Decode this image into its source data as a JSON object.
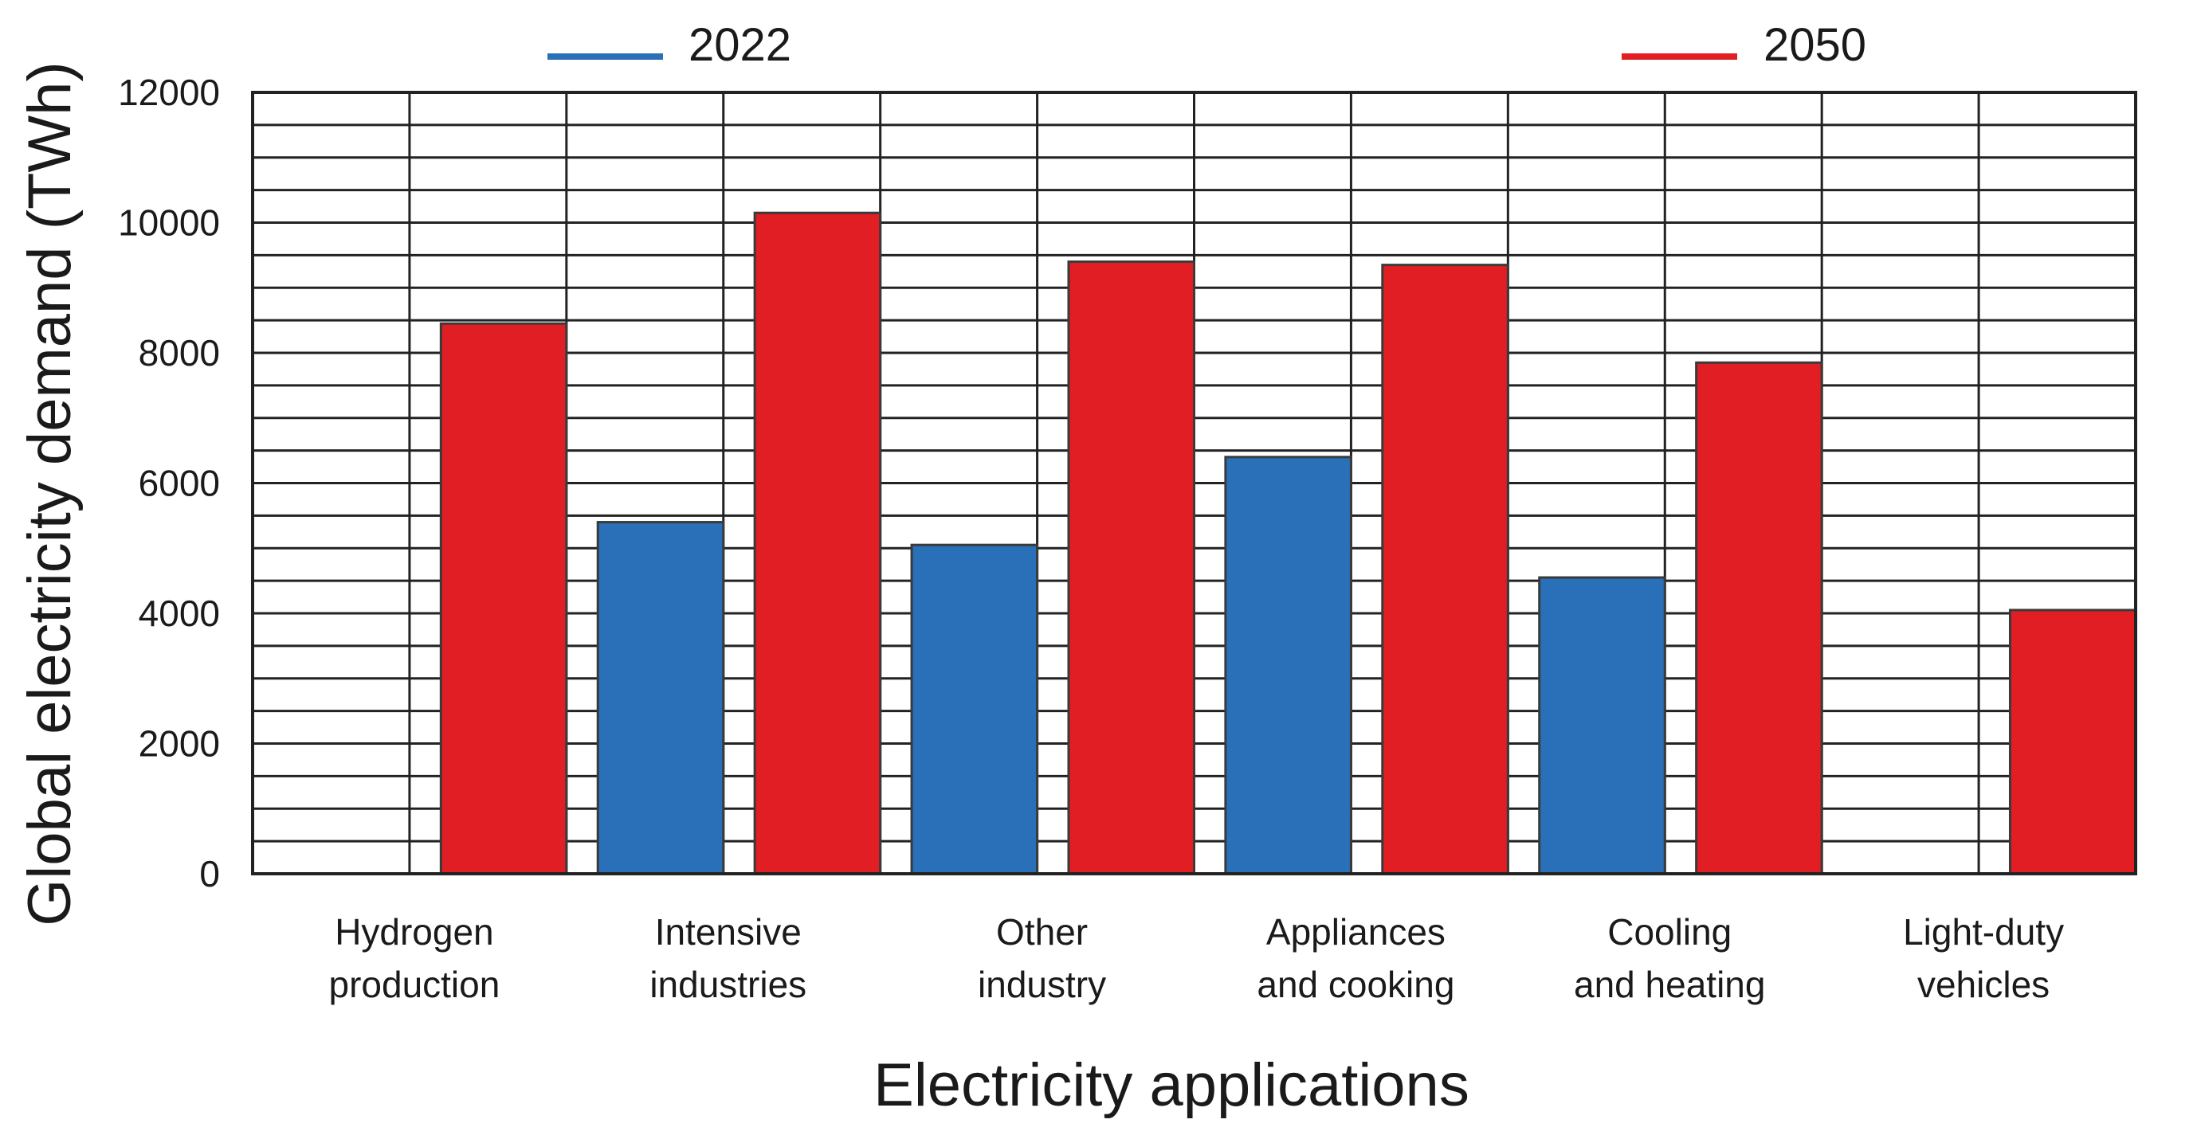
{
  "chart_data": {
    "type": "bar",
    "title": "",
    "xlabel": "Electricity applications",
    "ylabel": "Global electricity demand (TWh)",
    "ylim": [
      0,
      12000
    ],
    "yticks": [
      0,
      2000,
      4000,
      6000,
      8000,
      10000,
      12000
    ],
    "grid": true,
    "legend_position": "top",
    "categories": [
      [
        "Hydrogen",
        "production"
      ],
      [
        "Intensive",
        "industries"
      ],
      [
        "Other",
        "industry"
      ],
      [
        "Appliances",
        "and cooking"
      ],
      [
        "Cooling",
        "and heating"
      ],
      [
        "Light-duty",
        "vehicles"
      ]
    ],
    "series": [
      {
        "name": "2022",
        "color": "#2a70b8",
        "values": [
          0,
          5400,
          5050,
          6400,
          4550,
          0
        ]
      },
      {
        "name": "2050",
        "color": "#e01e24",
        "values": [
          8450,
          10150,
          9400,
          9350,
          7850,
          4050
        ]
      }
    ]
  }
}
